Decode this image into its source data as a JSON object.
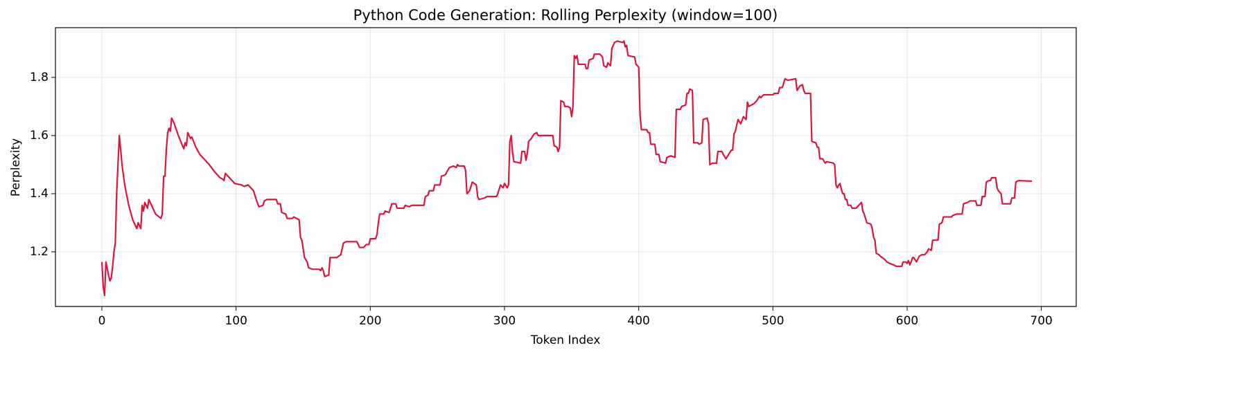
{
  "chart_data": {
    "type": "line",
    "title": "Python Code Generation: Rolling Perplexity (window=100)",
    "xlabel": "Token Index",
    "ylabel": "Perplexity",
    "color": "#dc143c",
    "grid": true,
    "xlim": [
      -34.6,
      726
    ],
    "ylim": [
      1.012,
      1.971
    ],
    "xticks": [
      0,
      100,
      200,
      300,
      400,
      500,
      600,
      700
    ],
    "yticks": [
      1.2,
      1.4,
      1.6,
      1.8
    ],
    "x": [
      0,
      1,
      2,
      3,
      5,
      6,
      7,
      8,
      9,
      10,
      11,
      13,
      15,
      17,
      20,
      23,
      26,
      27,
      29,
      30,
      31,
      32,
      34,
      35,
      38,
      40,
      44,
      45,
      46,
      47,
      48,
      49,
      50,
      51,
      52,
      54,
      57,
      60,
      61,
      62,
      63,
      64,
      66,
      67,
      70,
      73,
      76,
      80,
      84,
      88,
      90,
      91,
      92,
      95,
      99,
      104,
      106,
      109,
      113,
      115,
      117,
      120,
      121,
      123,
      130,
      131,
      133,
      134,
      137,
      138,
      142,
      143,
      147,
      148,
      149,
      151,
      153,
      154,
      157,
      162,
      163,
      164,
      165,
      166,
      169,
      170,
      175,
      178,
      180,
      182,
      190,
      192,
      195,
      197,
      199,
      200,
      204,
      205,
      206,
      207,
      210,
      211,
      214,
      216,
      219,
      220,
      225,
      226,
      229,
      231,
      240,
      241,
      243,
      244,
      247,
      248,
      252,
      253,
      256,
      257,
      259,
      262,
      264,
      265,
      266,
      270,
      271,
      272,
      274,
      276,
      279,
      280,
      281,
      285,
      287,
      294,
      295,
      297,
      299,
      300,
      302,
      303,
      304,
      305,
      306,
      307,
      312,
      313,
      315,
      316,
      317,
      318,
      320,
      322,
      324,
      325,
      336,
      337,
      339,
      340,
      341,
      342,
      344,
      345,
      347,
      349,
      350,
      351,
      352,
      353,
      354,
      355,
      360,
      361,
      362,
      363,
      366,
      367,
      371,
      373,
      374,
      376,
      377,
      379,
      380,
      382,
      384,
      388,
      389,
      390,
      391,
      392,
      397,
      398,
      400,
      401,
      402,
      406,
      407,
      408,
      409,
      412,
      413,
      415,
      416,
      420,
      421,
      424,
      427,
      428,
      431,
      432,
      435,
      436,
      437,
      438,
      440,
      441,
      444,
      445,
      447,
      448,
      451,
      452,
      453,
      455,
      458,
      459,
      462,
      463,
      465,
      467,
      469,
      470,
      471,
      472,
      474,
      476,
      478,
      480,
      481,
      482,
      486,
      488,
      490,
      491,
      493,
      500,
      501,
      504,
      505,
      507,
      509,
      511,
      517,
      518,
      520,
      522,
      523,
      524,
      528,
      529,
      532,
      533,
      534,
      535,
      537,
      539,
      540,
      545,
      546,
      547,
      548,
      549,
      550,
      551,
      552,
      553,
      554,
      555,
      556,
      558,
      559,
      562,
      563,
      566,
      567,
      568,
      570,
      573,
      574,
      575,
      576,
      577,
      579,
      580,
      583,
      585,
      587,
      590,
      592,
      594,
      596,
      597,
      599,
      600,
      601,
      602,
      603,
      604,
      605,
      607,
      609,
      611,
      613,
      615,
      616,
      618,
      619,
      621,
      623,
      624,
      626,
      627,
      633,
      634,
      637,
      641,
      642,
      645,
      647,
      651,
      652,
      655,
      656,
      658,
      659,
      661,
      662,
      663,
      666,
      667,
      668,
      670,
      671,
      677,
      678,
      680,
      681,
      683,
      693
    ],
    "values": [
      1.165,
      1.08,
      1.05,
      1.165,
      1.12,
      1.1,
      1.11,
      1.15,
      1.2,
      1.23,
      1.4,
      1.6,
      1.5,
      1.43,
      1.36,
      1.31,
      1.28,
      1.3,
      1.28,
      1.36,
      1.34,
      1.37,
      1.35,
      1.38,
      1.35,
      1.33,
      1.315,
      1.33,
      1.46,
      1.46,
      1.55,
      1.61,
      1.625,
      1.615,
      1.66,
      1.64,
      1.6,
      1.565,
      1.555,
      1.575,
      1.565,
      1.61,
      1.59,
      1.595,
      1.56,
      1.535,
      1.52,
      1.5,
      1.475,
      1.455,
      1.45,
      1.445,
      1.47,
      1.455,
      1.435,
      1.43,
      1.425,
      1.43,
      1.41,
      1.38,
      1.355,
      1.36,
      1.375,
      1.38,
      1.38,
      1.365,
      1.365,
      1.335,
      1.33,
      1.315,
      1.315,
      1.32,
      1.31,
      1.25,
      1.24,
      1.18,
      1.165,
      1.145,
      1.14,
      1.14,
      1.135,
      1.145,
      1.135,
      1.115,
      1.12,
      1.18,
      1.18,
      1.19,
      1.23,
      1.235,
      1.235,
      1.215,
      1.215,
      1.225,
      1.225,
      1.245,
      1.245,
      1.26,
      1.3,
      1.33,
      1.33,
      1.34,
      1.335,
      1.365,
      1.365,
      1.35,
      1.35,
      1.36,
      1.355,
      1.36,
      1.36,
      1.39,
      1.395,
      1.41,
      1.41,
      1.43,
      1.43,
      1.46,
      1.465,
      1.475,
      1.49,
      1.495,
      1.49,
      1.5,
      1.495,
      1.495,
      1.48,
      1.4,
      1.41,
      1.44,
      1.43,
      1.39,
      1.38,
      1.385,
      1.39,
      1.39,
      1.4,
      1.43,
      1.42,
      1.435,
      1.42,
      1.43,
      1.58,
      1.6,
      1.54,
      1.51,
      1.505,
      1.545,
      1.545,
      1.515,
      1.54,
      1.58,
      1.59,
      1.605,
      1.61,
      1.6,
      1.6,
      1.565,
      1.56,
      1.545,
      1.56,
      1.72,
      1.715,
      1.7,
      1.7,
      1.695,
      1.665,
      1.7,
      1.875,
      1.865,
      1.875,
      1.845,
      1.845,
      1.83,
      1.83,
      1.86,
      1.865,
      1.88,
      1.88,
      1.87,
      1.84,
      1.835,
      1.85,
      1.84,
      1.9,
      1.92,
      1.925,
      1.92,
      1.925,
      1.905,
      1.91,
      1.875,
      1.87,
      1.845,
      1.835,
      1.67,
      1.62,
      1.62,
      1.61,
      1.61,
      1.57,
      1.57,
      1.535,
      1.535,
      1.51,
      1.505,
      1.525,
      1.53,
      1.525,
      1.69,
      1.69,
      1.7,
      1.705,
      1.745,
      1.745,
      1.76,
      1.755,
      1.575,
      1.575,
      1.57,
      1.575,
      1.655,
      1.66,
      1.64,
      1.5,
      1.505,
      1.505,
      1.545,
      1.545,
      1.535,
      1.52,
      1.535,
      1.55,
      1.55,
      1.605,
      1.615,
      1.655,
      1.64,
      1.665,
      1.655,
      1.715,
      1.7,
      1.71,
      1.72,
      1.735,
      1.73,
      1.74,
      1.74,
      1.745,
      1.745,
      1.765,
      1.765,
      1.795,
      1.79,
      1.795,
      1.755,
      1.77,
      1.775,
      1.755,
      1.745,
      1.745,
      1.58,
      1.575,
      1.56,
      1.56,
      1.52,
      1.52,
      1.505,
      1.51,
      1.505,
      1.5,
      1.43,
      1.42,
      1.43,
      1.435,
      1.415,
      1.4,
      1.4,
      1.38,
      1.38,
      1.36,
      1.36,
      1.35,
      1.35,
      1.355,
      1.37,
      1.34,
      1.33,
      1.3,
      1.295,
      1.28,
      1.25,
      1.24,
      1.195,
      1.19,
      1.185,
      1.175,
      1.165,
      1.16,
      1.155,
      1.15,
      1.15,
      1.15,
      1.165,
      1.165,
      1.16,
      1.17,
      1.155,
      1.165,
      1.18,
      1.18,
      1.165,
      1.185,
      1.19,
      1.19,
      1.2,
      1.21,
      1.205,
      1.24,
      1.24,
      1.24,
      1.295,
      1.3,
      1.32,
      1.32,
      1.325,
      1.33,
      1.33,
      1.365,
      1.37,
      1.375,
      1.375,
      1.36,
      1.36,
      1.39,
      1.39,
      1.44,
      1.445,
      1.445,
      1.455,
      1.455,
      1.42,
      1.41,
      1.4,
      1.365,
      1.365,
      1.385,
      1.385,
      1.44,
      1.445,
      1.443
    ]
  }
}
